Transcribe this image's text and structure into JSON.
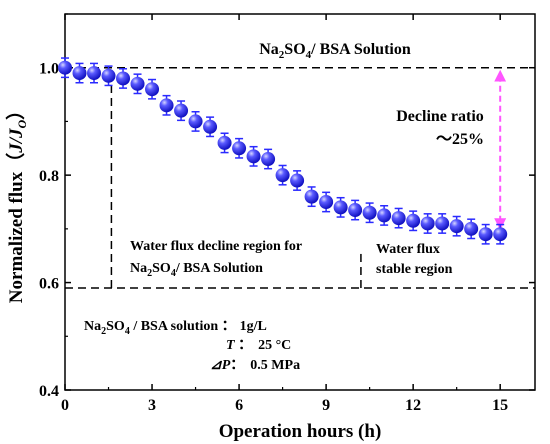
{
  "chart_data": {
    "type": "scatter",
    "title": {
      "text": "Na2SO4/ BSA Solution",
      "prefix": "Na",
      "sub1": "2",
      "mid": "SO",
      "sub2": "4",
      "suffix": "/ BSA Solution"
    },
    "xlabel": "Operation hours (h)",
    "ylabel": {
      "text": "Normalized flux (J/J0)",
      "main": "Normalized flux（",
      "italic": "J/J",
      "sub": "O",
      "close": "）"
    },
    "xlim": [
      0,
      16.2
    ],
    "ylim": [
      0.4,
      1.1
    ],
    "xticks": [
      0,
      3,
      6,
      9,
      12,
      15
    ],
    "xtick_labels": [
      "0",
      "3",
      "6",
      "9",
      "12",
      "15"
    ],
    "yticks": [
      0.4,
      0.6,
      0.8,
      1.0
    ],
    "ytick_labels": [
      "0.4",
      "0.6",
      "0.8",
      "1.0"
    ],
    "grid": false,
    "legend": "none",
    "series": [
      {
        "marker_color": "#2a2aff",
        "x": [
          0,
          0.5,
          1.0,
          1.5,
          2.0,
          2.5,
          3.0,
          3.5,
          4.0,
          4.5,
          5.0,
          5.5,
          6.0,
          6.5,
          7.0,
          7.5,
          8.0,
          8.5,
          9.0,
          9.5,
          10.0,
          10.5,
          11.0,
          11.5,
          12.0,
          12.5,
          13.0,
          13.5,
          14.0,
          14.5,
          15.0
        ],
        "y": [
          1.0,
          0.99,
          0.99,
          0.985,
          0.98,
          0.97,
          0.96,
          0.93,
          0.92,
          0.9,
          0.89,
          0.86,
          0.85,
          0.835,
          0.83,
          0.8,
          0.79,
          0.76,
          0.75,
          0.74,
          0.735,
          0.73,
          0.725,
          0.72,
          0.715,
          0.71,
          0.71,
          0.705,
          0.7,
          0.69,
          0.69
        ],
        "error": 0.018
      }
    ],
    "reference_lines": [
      {
        "axis": "y",
        "value": 1.0,
        "style": "dashed"
      },
      {
        "axis": "y",
        "value": 0.59,
        "style": "dashed"
      },
      {
        "axis": "x",
        "value": 1.6,
        "from": 0.59,
        "to": 0.97,
        "style": "dashed"
      },
      {
        "axis": "x",
        "value": 10.2,
        "from": 0.59,
        "to": 0.66,
        "style": "dashed"
      }
    ],
    "arrow": {
      "x": 15.0,
      "from": 1.0,
      "to": 0.69,
      "color": "#ff55ff"
    },
    "annotations": {
      "decline_ratio_line1": "Decline ratio",
      "decline_ratio_line2": "～25%",
      "region1_line1": "Water flux decline region for",
      "region1_line2": {
        "prefix": "Na",
        "sub1": "2",
        "mid": "SO",
        "sub2": "4",
        "suffix": "/ BSA Solution"
      },
      "region2_line1": "Water flux",
      "region2_line2": "stable region"
    },
    "conditions": {
      "solution_label": {
        "prefix": "Na",
        "sub1": "2",
        "mid": "SO",
        "sub2": "4",
        "suffix": " / BSA  solution ："
      },
      "solution_value": "1g/L",
      "temp_label": "T",
      "temp_colon": " ：",
      "temp_value": "25 °C",
      "pressure_label": "⊿P",
      "pressure_colon": "：",
      "pressure_value": "0.5 MPa"
    }
  }
}
